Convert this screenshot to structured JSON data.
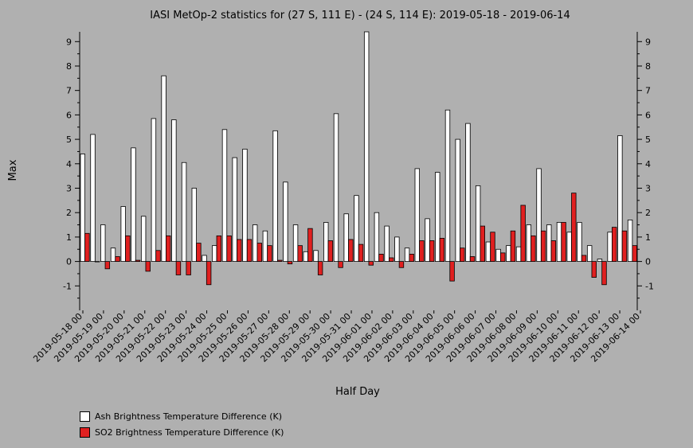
{
  "chart_data": {
    "type": "bar",
    "title": "IASI MetOp-2 statistics for (27 S, 111 E) - (24 S, 114 E): 2019-05-18 - 2019-06-14",
    "xlabel": "Half Day",
    "ylabel": "Max",
    "ylim": [
      -2,
      9.4
    ],
    "yticks": [
      -1,
      0,
      1,
      2,
      3,
      4,
      5,
      6,
      7,
      8,
      9
    ],
    "grid": false,
    "legend_position": "bottom-left",
    "xtick_labels": [
      "2019-05-18 00",
      "2019-05-19 00",
      "2019-05-20 00",
      "2019-05-21 00",
      "2019-05-22 00",
      "2019-05-23 00",
      "2019-05-24 00",
      "2019-05-25 00",
      "2019-05-26 00",
      "2019-05-27 00",
      "2019-05-28 00",
      "2019-05-29 00",
      "2019-05-30 00",
      "2019-05-31 00",
      "2019-06-01 00",
      "2019-06-02 00",
      "2019-06-03 00",
      "2019-06-04 00",
      "2019-06-05 00",
      "2019-06-06 00",
      "2019-06-07 00",
      "2019-06-08 00",
      "2019-06-09 00",
      "2019-06-10 00",
      "2019-06-11 00",
      "2019-06-12 00",
      "2019-06-13 00",
      "2019-06-14 00"
    ],
    "series": [
      {
        "name": "Ash Brightness Temperature Difference (K)",
        "color": "#ffffff",
        "values": [
          4.4,
          5.2,
          1.5,
          0.55,
          2.25,
          4.65,
          1.85,
          5.85,
          7.6,
          5.8,
          4.05,
          3.0,
          0.25,
          0.65,
          5.4,
          4.25,
          4.6,
          1.5,
          1.25,
          5.35,
          3.25,
          1.5,
          0.4,
          0.45,
          1.6,
          6.05,
          1.95,
          2.7,
          9.4,
          2.0,
          1.45,
          1.0,
          0.55,
          3.8,
          1.75,
          3.65,
          6.2,
          5.0,
          5.65,
          3.1,
          0.8,
          0.5,
          0.65,
          0.6,
          1.5,
          3.8,
          1.5,
          1.6,
          1.2,
          1.6,
          0.65,
          0.1,
          1.2,
          5.15,
          1.7
        ]
      },
      {
        "name": "SO2 Brightness Temperature Difference (K)",
        "color": "#e02020",
        "values": [
          1.15,
          0.0,
          -0.3,
          0.2,
          1.05,
          0.05,
          -0.4,
          0.45,
          1.05,
          -0.55,
          -0.55,
          0.75,
          -0.95,
          1.05,
          1.05,
          0.9,
          0.9,
          0.75,
          0.65,
          0.05,
          -0.1,
          0.65,
          1.35,
          -0.55,
          0.85,
          -0.25,
          0.9,
          0.7,
          -0.15,
          0.3,
          0.15,
          -0.25,
          0.3,
          0.85,
          0.85,
          0.95,
          -0.8,
          0.55,
          0.2,
          1.45,
          1.2,
          0.35,
          1.25,
          2.3,
          1.05,
          1.25,
          0.85,
          1.6,
          2.8,
          0.25,
          -0.65,
          -0.95,
          1.4,
          1.25,
          0.65
        ]
      }
    ]
  }
}
